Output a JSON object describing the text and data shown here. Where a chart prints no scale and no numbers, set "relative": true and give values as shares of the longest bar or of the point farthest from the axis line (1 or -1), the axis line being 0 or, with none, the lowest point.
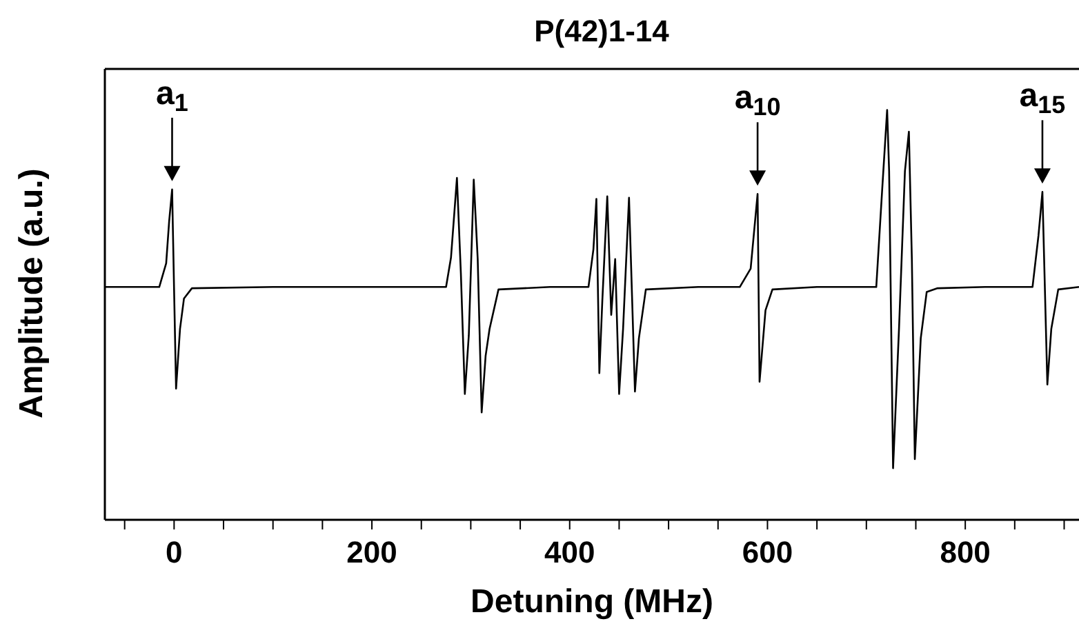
{
  "chart_data": {
    "type": "line",
    "title": "P(42)1-14",
    "xlabel": "Detuning (MHz)",
    "ylabel": "Amplitude (a.u.)",
    "relative": true,
    "marker": "none",
    "line_style": "solid",
    "xlim": [
      -70,
      915
    ],
    "xticks": [
      {
        "value": -50,
        "label": null
      },
      0,
      {
        "value": 50,
        "label": null
      },
      {
        "value": 100,
        "label": null
      },
      {
        "value": 150,
        "label": null
      },
      200,
      {
        "value": 250,
        "label": null
      },
      {
        "value": 300,
        "label": null
      },
      {
        "value": 350,
        "label": null
      },
      400,
      {
        "value": 450,
        "label": null
      },
      {
        "value": 500,
        "label": null
      },
      {
        "value": 550,
        "label": null
      },
      600,
      {
        "value": 650,
        "label": null
      },
      {
        "value": 700,
        "label": null
      },
      {
        "value": 750,
        "label": null
      },
      800,
      {
        "value": 850,
        "label": null
      },
      {
        "value": 900,
        "label": null
      }
    ],
    "series": [
      {
        "color": "#000000",
        "x": [
          -70,
          -15,
          -8,
          -5,
          -2,
          0,
          2,
          6,
          10,
          18,
          100,
          200,
          275,
          280,
          286,
          290,
          294,
          298,
          303,
          307,
          311,
          315,
          319,
          328,
          380,
          419,
          424,
          427,
          430,
          433,
          438,
          442,
          446,
          450,
          454,
          460,
          466,
          470,
          477,
          530,
          572,
          583,
          590,
          592,
          598,
          605,
          650,
          700,
          710,
          716,
          721,
          723,
          727,
          733,
          739,
          743,
          746,
          749,
          755,
          761,
          772,
          820,
          868,
          874,
          878,
          883,
          887,
          894,
          915
        ],
        "values": [
          0.568,
          0.568,
          0.626,
          0.728,
          0.806,
          0.56,
          0.32,
          0.466,
          0.54,
          0.565,
          0.568,
          0.568,
          0.568,
          0.64,
          0.834,
          0.6,
          0.307,
          0.45,
          0.83,
          0.636,
          0.262,
          0.4,
          0.466,
          0.562,
          0.568,
          0.568,
          0.66,
          0.783,
          0.358,
          0.534,
          0.789,
          0.5,
          0.636,
          0.307,
          0.466,
          0.786,
          0.313,
          0.443,
          0.562,
          0.568,
          0.568,
          0.613,
          0.795,
          0.337,
          0.511,
          0.562,
          0.568,
          0.568,
          0.568,
          0.806,
          1.0,
          0.851,
          0.126,
          0.466,
          0.851,
          0.947,
          0.636,
          0.148,
          0.443,
          0.556,
          0.565,
          0.568,
          0.568,
          0.693,
          0.8,
          0.33,
          0.466,
          0.562,
          0.568
        ]
      }
    ],
    "annotations": [
      {
        "text": "a$_{1}$",
        "x": -2,
        "y": 0.806
      },
      {
        "text": "a$_{10}$",
        "x": 590,
        "y": 0.795
      },
      {
        "text": "a$_{15}$",
        "x": 878,
        "y": 0.8
      }
    ]
  }
}
